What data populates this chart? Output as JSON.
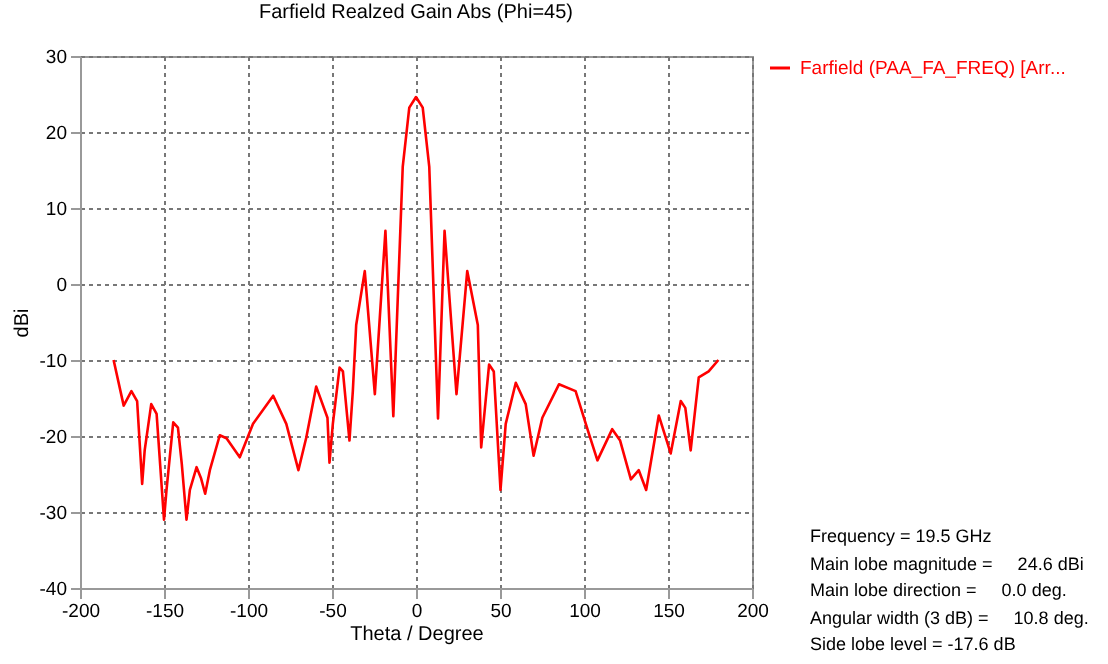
{
  "chart_data": {
    "type": "line",
    "title": "Farfield Realzed Gain Abs (Phi=45)",
    "xlabel": "Theta / Degree",
    "ylabel": "dBi",
    "x": [
      -180,
      -174,
      -169.4,
      -166,
      -163,
      -161.5,
      -157.6,
      -154.4,
      -150,
      -148.5,
      -144.5,
      -141.7,
      -139.4,
      -136.6,
      -134.6,
      -130.6,
      -127.9,
      -125.5,
      -122.7,
      -116.8,
      -112.8,
      -104.9,
      -97,
      -85,
      -77.2,
      -70,
      -65.3,
      -59.4,
      -52.7,
      -51.5,
      -49.5,
      -45.5,
      -43.5,
      -39.6,
      -37.6,
      -35.6,
      -30.5,
      -24.5,
      -18.2,
      -13.5,
      -7.9,
      -4,
      0,
      4,
      7.9,
      13.1,
      17,
      24.1,
      30.5,
      36.8,
      38.8,
      43.5,
      46.3,
      50.3,
      53.4,
      59.4,
      65.3,
      70,
      75.2,
      85.1,
      95,
      102.9,
      108,
      116.8,
      121.5,
      127.9,
      132.6,
      137,
      144.5,
      151.6,
      157.6,
      160.3,
      163.5,
      168.3,
      174.2,
      180
    ],
    "series": [
      {
        "name": "Farfield (PAA_FA_FREQ) [Arr...",
        "color": "#ff0000",
        "values": [
          -10,
          -16,
          -14.1,
          -15.4,
          -26.3,
          -21.9,
          -15.8,
          -17.1,
          -31,
          -27.1,
          -18.2,
          -18.9,
          -23.7,
          -31,
          -27.1,
          -24.1,
          -25.6,
          -27.6,
          -24.5,
          -19.9,
          -20.3,
          -22.8,
          -18.4,
          -14.7,
          -18.4,
          -24.5,
          -20.2,
          -13.5,
          -17.6,
          -23.5,
          -18.4,
          -11,
          -11.5,
          -20.6,
          -14.1,
          -5.4,
          1.7,
          -14.5,
          7,
          -17.4,
          15.4,
          23.2,
          24.6,
          23.2,
          15.4,
          -17.7,
          7,
          -14.5,
          1.7,
          -5.4,
          -21.5,
          -10.6,
          -11.5,
          -27.1,
          -18.4,
          -13,
          -15.8,
          -22.6,
          -17.6,
          -13.2,
          -14.1,
          -19.7,
          -23.2,
          -19.1,
          -20.6,
          -25.7,
          -24.5,
          -27.1,
          -17.3,
          -22.3,
          -15.4,
          -16.3,
          -21.9,
          -12.3,
          -11.5,
          -10
        ]
      }
    ],
    "xlim": [
      -200,
      200
    ],
    "xticks": [
      -200,
      -150,
      -100,
      -50,
      0,
      50,
      100,
      150,
      200
    ],
    "ylim": [
      -40,
      30
    ],
    "yticks": [
      -40,
      -30,
      -20,
      -10,
      0,
      10,
      20,
      30
    ],
    "grid": true,
    "legend": "top right",
    "line_style": "solid",
    "annotations": [
      "Frequency = 19.5 GHz",
      "Main lobe magnitude =     24.6 dBi",
      "Main lobe direction =     0.0 deg.",
      "Angular width (3 dB) =     10.8 deg.",
      "Side lobe level = -17.6 dB"
    ]
  }
}
